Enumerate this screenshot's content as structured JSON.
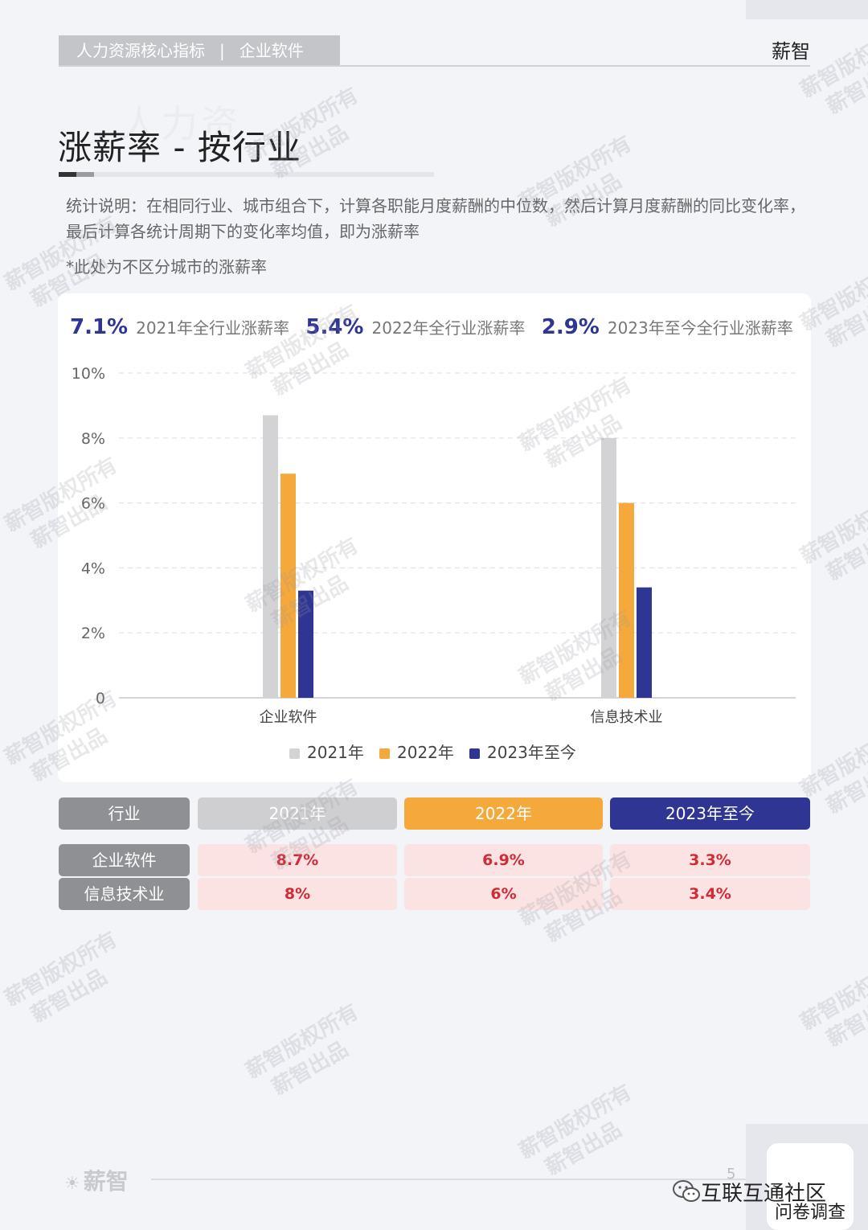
{
  "header": {
    "breadcrumb": [
      "人力资源核心指标",
      "企业软件"
    ],
    "breadcrumb_sep": "|",
    "brand": "薪智"
  },
  "page": {
    "bg_word": "人力资",
    "title": "涨薪率 - 按行业",
    "note": "统计说明：在相同行业、城市组合下，计算各职能月度薪酬的中位数，然后计算月度薪酬的同比变化率，最后计算各统计周期下的变化率均值，即为涨薪率",
    "note_sub": "*此处为不区分城市的涨薪率"
  },
  "summary": [
    {
      "value": "7.1%",
      "label": "2021年全行业涨薪率"
    },
    {
      "value": "5.4%",
      "label": "2022年全行业涨薪率"
    },
    {
      "value": "2.9%",
      "label": "2023年至今全行业涨薪率"
    }
  ],
  "chart_data": {
    "type": "bar",
    "categories": [
      "企业软件",
      "信息技术业"
    ],
    "series": [
      {
        "name": "2021年",
        "values": [
          8.7,
          8.0
        ],
        "color": "#d3d3d5"
      },
      {
        "name": "2022年",
        "values": [
          6.9,
          6.0
        ],
        "color": "#f5a93a"
      },
      {
        "name": "2023年至今",
        "values": [
          3.3,
          3.4
        ],
        "color": "#2f3592"
      }
    ],
    "ylim": [
      0,
      10
    ],
    "yticks": [
      {
        "value": 0,
        "label": "0"
      },
      {
        "value": 2,
        "label": "2%"
      },
      {
        "value": 4,
        "label": "4%"
      },
      {
        "value": 6,
        "label": "6%"
      },
      {
        "value": 8,
        "label": "8%"
      },
      {
        "value": 10,
        "label": "10%"
      }
    ],
    "grid": true,
    "legend": "bottom-center"
  },
  "table": {
    "headers": [
      "行业",
      "2021年",
      "2022年",
      "2023年至今"
    ],
    "header_colors": [
      "#8f9093",
      "#cfcfd1",
      "#f5a93a",
      "#2f3592"
    ],
    "rows": [
      {
        "label": "企业软件",
        "values": [
          "8.7%",
          "6.9%",
          "3.3%"
        ]
      },
      {
        "label": "信息技术业",
        "values": [
          "8%",
          "6%",
          "3.4%"
        ]
      }
    ]
  },
  "footer": {
    "logo": "薪智",
    "page_number": "5",
    "wechat_name": "互联互通社区",
    "survey": "问卷调查"
  },
  "watermark": [
    "薪智版权所有",
    "薪智出品"
  ]
}
